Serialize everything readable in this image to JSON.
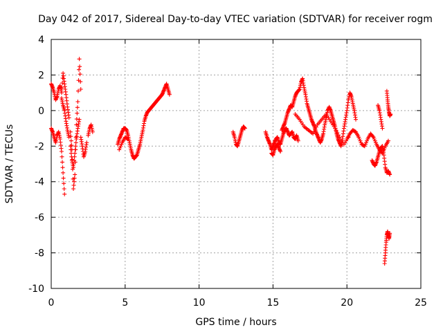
{
  "chart_data": {
    "type": "scatter",
    "title": "Day 042 of 2017, Sidereal Day-to-day VTEC variation (SDTVAR) for receiver rogm",
    "xlabel": "GPS time / hours",
    "ylabel": "SDTVAR / TECUs",
    "xlim": [
      0,
      25
    ],
    "ylim": [
      -10,
      4
    ],
    "xticks": [
      0,
      5,
      10,
      15,
      20,
      25
    ],
    "yticks": [
      -10,
      -8,
      -6,
      -4,
      -2,
      0,
      2,
      4
    ],
    "grid": true,
    "marker": "+",
    "series": [
      {
        "name": "SDTVAR",
        "color": "#ff0000",
        "segments": [
          {
            "x": [
              0.0,
              0.1,
              0.2,
              0.3,
              0.4,
              0.5,
              0.6,
              0.7,
              0.8,
              0.9,
              1.0,
              1.1,
              1.2
            ],
            "y": [
              1.5,
              1.3,
              1.0,
              0.6,
              0.8,
              1.2,
              1.4,
              1.0,
              2.1,
              1.5,
              0.9,
              0.2,
              -0.4
            ]
          },
          {
            "x": [
              0.0,
              0.1,
              0.2,
              0.3,
              0.4,
              0.5,
              0.6,
              0.7,
              0.8,
              0.9
            ],
            "y": [
              -1.0,
              -1.2,
              -1.5,
              -1.8,
              -1.4,
              -1.2,
              -1.6,
              -2.3,
              -3.5,
              -4.7
            ]
          },
          {
            "x": [
              0.7,
              0.8,
              0.9,
              1.0,
              1.1,
              1.2
            ],
            "y": [
              0.7,
              0.3,
              0.0,
              -0.6,
              -1.1,
              -1.5
            ]
          },
          {
            "x": [
              1.3,
              1.4,
              1.5,
              1.6,
              1.7,
              1.8,
              1.9,
              2.0
            ],
            "y": [
              -1.2,
              -2.2,
              -4.4,
              -3.6,
              -0.8,
              0.5,
              2.9,
              1.2
            ]
          },
          {
            "x": [
              1.3,
              1.4,
              1.5,
              1.6,
              1.7,
              1.8,
              1.9
            ],
            "y": [
              -2.0,
              -2.8,
              -3.2,
              -2.4,
              -1.6,
              -1.0,
              -0.5
            ]
          },
          {
            "x": [
              2.0,
              2.1,
              2.2,
              2.3,
              2.4
            ],
            "y": [
              -1.5,
              -2.0,
              -2.6,
              -2.3,
              -1.8
            ]
          },
          {
            "x": [
              2.5,
              2.6,
              2.7,
              2.8
            ],
            "y": [
              -1.4,
              -1.0,
              -0.8,
              -1.2
            ]
          },
          {
            "x": [
              4.5,
              4.6,
              4.7,
              4.8,
              4.9,
              5.0,
              5.1,
              5.2,
              5.3,
              5.4,
              5.5,
              5.6,
              5.7,
              5.8,
              5.9,
              6.0,
              6.1,
              6.2,
              6.3,
              6.4,
              6.5,
              6.6,
              6.7,
              6.8,
              6.9,
              7.0,
              7.1,
              7.2,
              7.3,
              7.4,
              7.5,
              7.6,
              7.7,
              7.8,
              7.9,
              8.0
            ],
            "y": [
              -1.9,
              -1.6,
              -1.4,
              -1.2,
              -1.0,
              -1.0,
              -1.1,
              -1.4,
              -1.8,
              -2.2,
              -2.5,
              -2.7,
              -2.6,
              -2.5,
              -2.2,
              -1.9,
              -1.5,
              -1.1,
              -0.6,
              -0.3,
              -0.1,
              0.0,
              0.1,
              0.2,
              0.3,
              0.4,
              0.5,
              0.6,
              0.7,
              0.8,
              0.9,
              1.1,
              1.3,
              1.5,
              1.2,
              0.9
            ]
          },
          {
            "x": [
              4.6,
              4.8,
              5.0,
              5.2
            ],
            "y": [
              -2.2,
              -1.8,
              -1.5,
              -1.6
            ]
          },
          {
            "x": [
              12.3,
              12.4,
              12.5,
              12.6,
              12.7,
              12.8,
              12.9,
              13.0,
              13.1
            ],
            "y": [
              -1.2,
              -1.5,
              -1.9,
              -2.0,
              -1.7,
              -1.4,
              -1.1,
              -0.9,
              -1.0
            ]
          },
          {
            "x": [
              14.5,
              14.6,
              14.7,
              14.8,
              14.9,
              15.0,
              15.1,
              15.2,
              15.3,
              15.4,
              15.5,
              15.6,
              15.7,
              15.8,
              15.9,
              16.0,
              16.1,
              16.2,
              16.3,
              16.4,
              16.5,
              16.6,
              16.7
            ],
            "y": [
              -1.2,
              -1.5,
              -1.7,
              -1.9,
              -2.2,
              -2.0,
              -1.8,
              -1.6,
              -1.5,
              -1.8,
              -1.9,
              -1.6,
              -1.3,
              -1.1,
              -1.0,
              -1.2,
              -1.4,
              -1.3,
              -1.2,
              -1.5,
              -1.6,
              -1.4,
              -1.7
            ]
          },
          {
            "x": [
              14.9,
              15.0,
              15.1,
              15.2,
              15.3,
              15.4,
              15.5
            ],
            "y": [
              -2.4,
              -2.5,
              -2.2,
              -2.0,
              -1.9,
              -2.1,
              -2.3
            ]
          },
          {
            "x": [
              15.6,
              15.7,
              15.8,
              15.9,
              16.0,
              16.1,
              16.2,
              16.3,
              16.4,
              16.5,
              16.6,
              16.7,
              16.8,
              16.9,
              17.0,
              17.1,
              17.2,
              17.3,
              17.4,
              17.5,
              17.6,
              17.7,
              17.8,
              17.9,
              18.0,
              18.1,
              18.2,
              18.3,
              18.4,
              18.5,
              18.6,
              18.7,
              18.8,
              18.9,
              19.0,
              19.1,
              19.2,
              19.3,
              19.4,
              19.5,
              19.6,
              19.7,
              19.8,
              19.9,
              20.0,
              20.1,
              20.2,
              20.3,
              20.4,
              20.5,
              20.6
            ],
            "y": [
              -1.1,
              -0.9,
              -0.7,
              -0.4,
              -0.1,
              0.1,
              0.3,
              0.2,
              0.5,
              0.8,
              1.0,
              1.1,
              1.2,
              1.6,
              1.8,
              1.3,
              0.9,
              0.4,
              0.1,
              -0.2,
              -0.5,
              -0.7,
              -0.9,
              -1.2,
              -1.4,
              -1.6,
              -1.8,
              -1.6,
              -1.3,
              -0.8,
              -0.4,
              0.0,
              0.2,
              0.0,
              -0.3,
              -0.6,
              -0.9,
              -1.3,
              -1.6,
              -1.8,
              -2.0,
              -1.6,
              -1.0,
              -0.5,
              0.0,
              0.6,
              1.0,
              0.8,
              0.4,
              0.0,
              -0.5
            ]
          },
          {
            "x": [
              16.5,
              16.8,
              17.1,
              17.4,
              17.7,
              18.0,
              18.3,
              18.6,
              18.9,
              19.2,
              19.5,
              19.8,
              20.1
            ],
            "y": [
              -0.2,
              -0.5,
              -0.9,
              -1.1,
              -1.3,
              -0.8,
              -0.5,
              -0.2,
              -0.6,
              -1.0,
              -1.5,
              -1.9,
              -1.5
            ]
          },
          {
            "x": [
              20.0,
              20.2,
              20.4,
              20.6,
              20.8,
              21.0,
              21.2,
              21.4,
              21.6,
              21.8,
              22.0,
              22.2,
              22.4,
              22.6,
              22.8
            ],
            "y": [
              -1.6,
              -1.3,
              -1.1,
              -1.2,
              -1.5,
              -1.9,
              -2.0,
              -1.6,
              -1.3,
              -1.5,
              -1.9,
              -2.2,
              -2.4,
              -2.0,
              -1.7
            ]
          },
          {
            "x": [
              21.7,
              21.8,
              21.9,
              22.0,
              22.1,
              22.2,
              22.3,
              22.4,
              22.5,
              22.6,
              22.7,
              22.8,
              22.9
            ],
            "y": [
              -2.8,
              -3.0,
              -3.1,
              -2.9,
              -2.6,
              -2.3,
              -2.1,
              -2.0,
              -2.5,
              -3.2,
              -3.5,
              -3.4,
              -3.6
            ]
          },
          {
            "x": [
              22.1,
              22.2,
              22.3,
              22.4
            ],
            "y": [
              0.3,
              0.0,
              -0.5,
              -1.0
            ]
          },
          {
            "x": [
              22.7,
              22.75,
              22.8,
              22.85,
              22.9,
              22.95
            ],
            "y": [
              1.1,
              0.6,
              0.2,
              -0.1,
              -0.3,
              -0.2
            ]
          },
          {
            "x": [
              22.55,
              22.6,
              22.65,
              22.7,
              22.75,
              22.8,
              22.85,
              22.9
            ],
            "y": [
              -8.6,
              -8.0,
              -7.4,
              -7.0,
              -6.8,
              -7.0,
              -7.2,
              -6.9
            ]
          }
        ]
      }
    ]
  }
}
